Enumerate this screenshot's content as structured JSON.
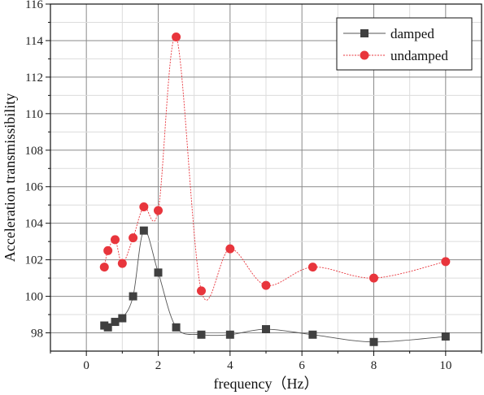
{
  "chart_data": {
    "type": "line",
    "xlabel": "frequency（Hz）",
    "ylabel": "Acceleration transmissibility",
    "xlim": [
      -1,
      11
    ],
    "ylim": [
      97,
      116
    ],
    "xticks": [
      0,
      2,
      4,
      6,
      8,
      10
    ],
    "yticks": [
      98,
      100,
      102,
      104,
      106,
      108,
      110,
      112,
      114,
      116
    ],
    "grid": true,
    "legend_position": "top-right",
    "series": [
      {
        "name": "damped",
        "marker": "square",
        "color": "#404040",
        "line_color": "#555555",
        "x": [
          0.5,
          0.6,
          0.8,
          1.0,
          1.3,
          1.6,
          2.0,
          2.5,
          3.2,
          4.0,
          5.0,
          6.3,
          8.0,
          10.0
        ],
        "y": [
          98.4,
          98.3,
          98.6,
          98.8,
          100.0,
          103.6,
          101.3,
          98.3,
          97.9,
          97.9,
          98.2,
          97.9,
          97.5,
          97.8
        ]
      },
      {
        "name": "undamped",
        "marker": "circle",
        "color": "#e8353c",
        "line_color": "#e8353c",
        "x": [
          0.5,
          0.6,
          0.8,
          1.0,
          1.3,
          1.6,
          2.0,
          2.5,
          3.2,
          4.0,
          5.0,
          6.3,
          8.0,
          10.0
        ],
        "y": [
          101.6,
          102.5,
          103.1,
          101.8,
          103.2,
          104.9,
          104.7,
          114.2,
          100.3,
          102.6,
          100.6,
          101.6,
          101.0,
          101.9
        ]
      }
    ]
  }
}
